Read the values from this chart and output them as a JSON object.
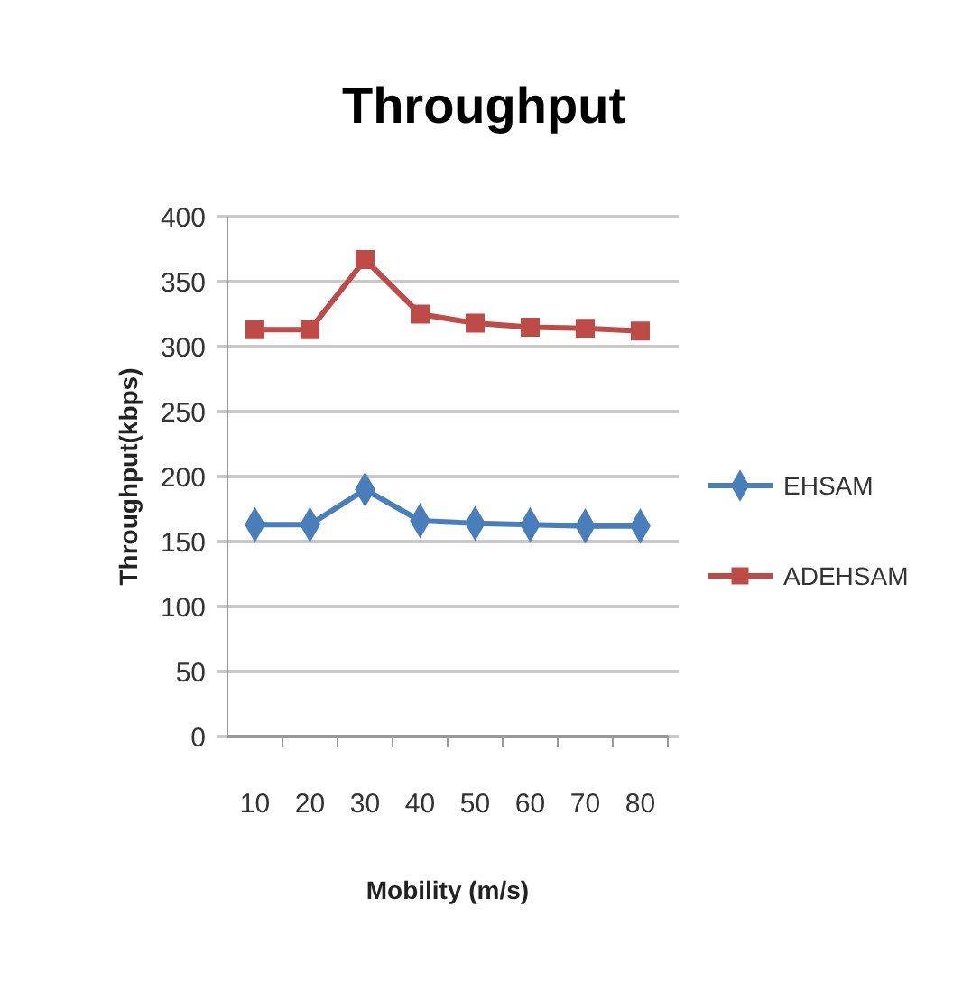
{
  "chart_data": {
    "type": "line",
    "title": "Throughput",
    "xlabel": "Mobility (m/s)",
    "ylabel": "Throughput(kbps)",
    "categories": [
      "10",
      "20",
      "30",
      "40",
      "50",
      "60",
      "70",
      "80"
    ],
    "series": [
      {
        "name": "EHSAM",
        "color": "#4a7ebb",
        "marker": "diamond",
        "values": [
          163,
          163,
          190,
          166,
          164,
          163,
          162,
          162
        ]
      },
      {
        "name": "ADEHSAM",
        "color": "#be4b48",
        "marker": "square",
        "values": [
          313,
          313,
          367,
          325,
          318,
          315,
          314,
          312
        ]
      }
    ],
    "ylim": [
      0,
      400
    ],
    "yticks": [
      0,
      50,
      100,
      150,
      200,
      250,
      300,
      350,
      400
    ],
    "grid": "y",
    "legend": "right",
    "line_style": "solid"
  }
}
